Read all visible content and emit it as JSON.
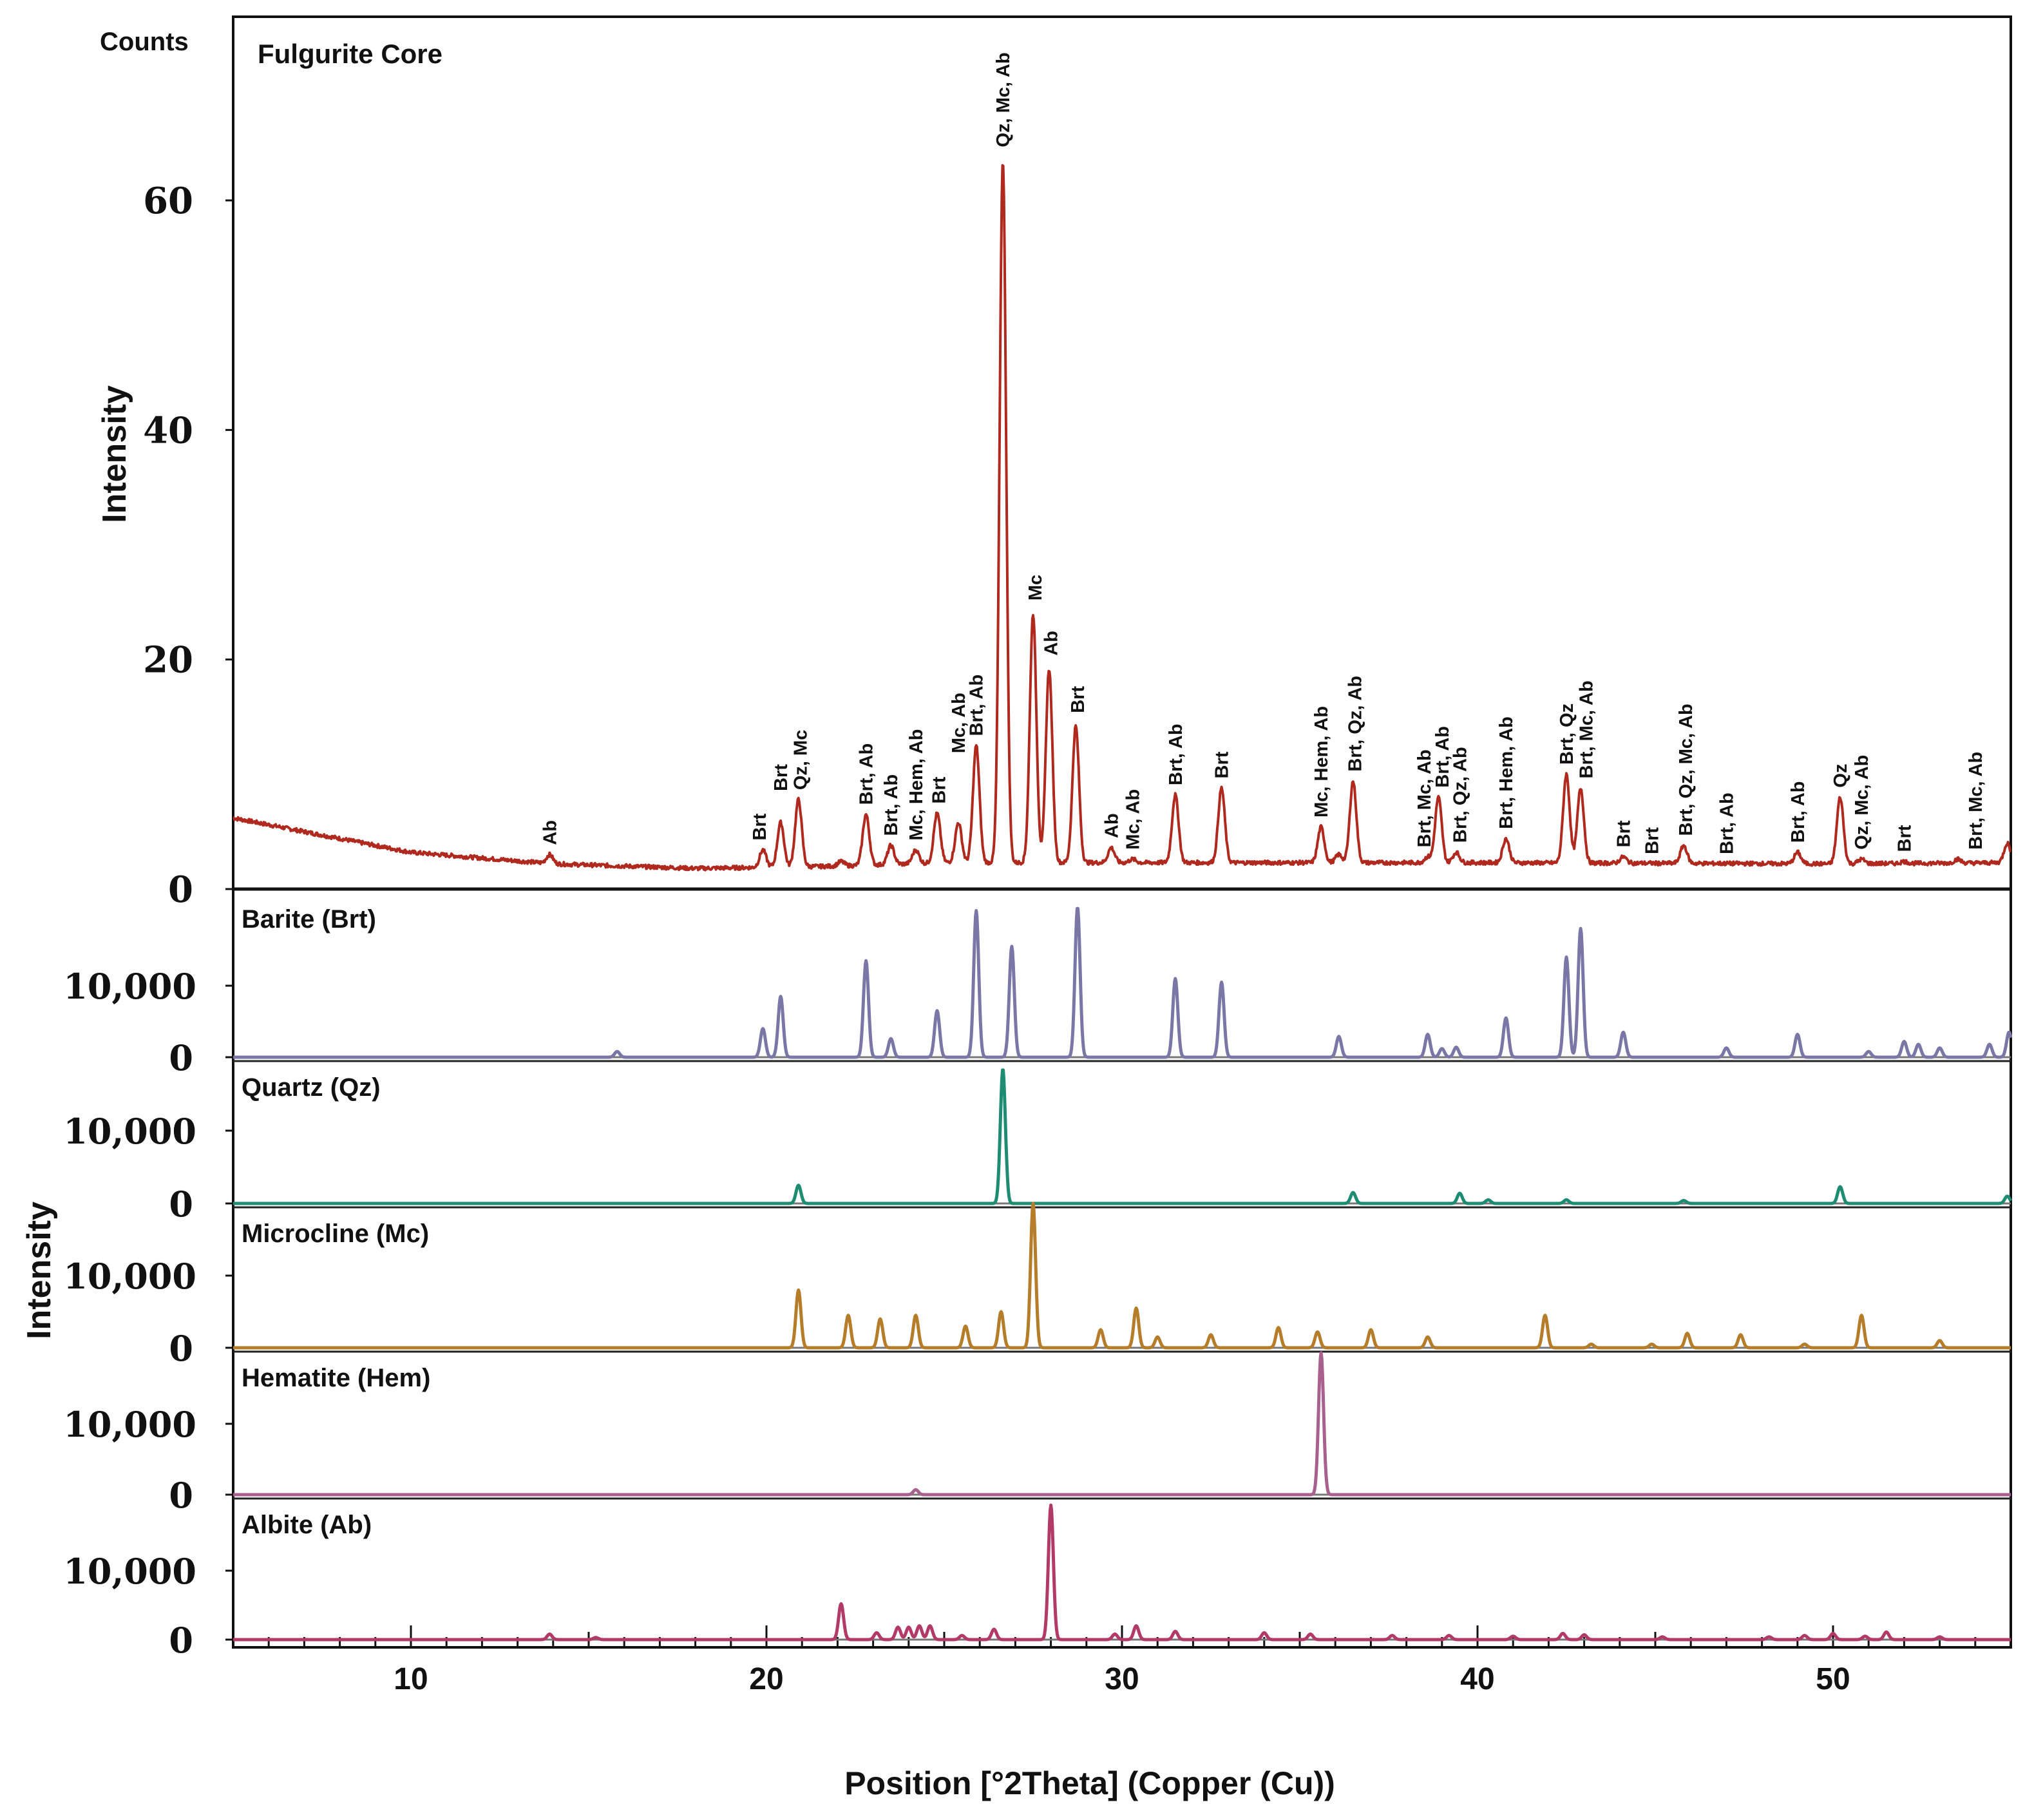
{
  "chart_data": [
    {
      "type": "line",
      "title": "Fulgurite Core",
      "ylabel": "Intensity",
      "yunit_label": "Counts",
      "xlabel": "Position [°2Theta] (Copper (Cu))",
      "xlim": [
        5,
        55
      ],
      "ylim": [
        0,
        76
      ],
      "yticks": [
        "0",
        "20",
        "40",
        "60"
      ],
      "xticks": [
        "10",
        "20",
        "30",
        "40",
        "50"
      ],
      "color": "#b0291f",
      "background_points": [
        [
          5,
          6.2
        ],
        [
          7,
          5
        ],
        [
          10,
          3.2
        ],
        [
          14,
          2.2
        ],
        [
          18,
          1.8
        ],
        [
          22,
          2.0
        ],
        [
          25,
          2.3
        ],
        [
          30,
          2.3
        ],
        [
          40,
          2.3
        ],
        [
          50,
          2.2
        ],
        [
          55,
          2.3
        ]
      ],
      "peaks": [
        {
          "x": 13.9,
          "y": 3.0
        },
        {
          "x": 19.9,
          "y": 3.4
        },
        {
          "x": 20.4,
          "y": 5.8
        },
        {
          "x": 20.9,
          "y": 7.8
        },
        {
          "x": 22.1,
          "y": 2.4
        },
        {
          "x": 22.8,
          "y": 6.5
        },
        {
          "x": 23.5,
          "y": 3.8
        },
        {
          "x": 24.2,
          "y": 3.4
        },
        {
          "x": 24.8,
          "y": 6.6
        },
        {
          "x": 25.4,
          "y": 5.8
        },
        {
          "x": 25.9,
          "y": 12.5
        },
        {
          "x": 26.65,
          "y": 63.5
        },
        {
          "x": 27.5,
          "y": 24
        },
        {
          "x": 27.95,
          "y": 19.2
        },
        {
          "x": 28.7,
          "y": 14.2
        },
        {
          "x": 29.7,
          "y": 3.6
        },
        {
          "x": 30.3,
          "y": 2.6
        },
        {
          "x": 31.5,
          "y": 8.2
        },
        {
          "x": 32.8,
          "y": 8.8
        },
        {
          "x": 35.6,
          "y": 5.4
        },
        {
          "x": 36.1,
          "y": 3.0
        },
        {
          "x": 36.5,
          "y": 9.4
        },
        {
          "x": 38.6,
          "y": 2.8
        },
        {
          "x": 38.9,
          "y": 8.0
        },
        {
          "x": 39.4,
          "y": 3.2
        },
        {
          "x": 40.8,
          "y": 4.4
        },
        {
          "x": 42.5,
          "y": 10.0
        },
        {
          "x": 42.9,
          "y": 8.8
        },
        {
          "x": 44.1,
          "y": 2.8
        },
        {
          "x": 44.9,
          "y": 2.2
        },
        {
          "x": 45.8,
          "y": 3.8
        },
        {
          "x": 47.0,
          "y": 2.2
        },
        {
          "x": 49.0,
          "y": 3.2
        },
        {
          "x": 50.2,
          "y": 8.0
        },
        {
          "x": 50.8,
          "y": 2.6
        },
        {
          "x": 52.0,
          "y": 2.4
        },
        {
          "x": 53.5,
          "y": 2.6
        },
        {
          "x": 54.9,
          "y": 4.0
        }
      ],
      "peak_labels": [
        {
          "x": 13.9,
          "y": 3.5,
          "text": "Ab"
        },
        {
          "x": 19.8,
          "y": 3.9,
          "text": "Brt"
        },
        {
          "x": 20.4,
          "y": 8.2,
          "text": "Brt"
        },
        {
          "x": 20.95,
          "y": 8.3,
          "text": "Qz, Mc"
        },
        {
          "x": 22.8,
          "y": 7.0,
          "text": "Brt, Ab"
        },
        {
          "x": 23.5,
          "y": 4.3,
          "text": "Brt, Ab"
        },
        {
          "x": 24.2,
          "y": 3.9,
          "text": "Mc, Hem, Ab"
        },
        {
          "x": 24.85,
          "y": 7.1,
          "text": "Brt"
        },
        {
          "x": 25.4,
          "y": 11.5,
          "text": "Mc, Ab"
        },
        {
          "x": 25.9,
          "y": 13.0,
          "text": "Brt, Ab"
        },
        {
          "x": 26.65,
          "y": 64.3,
          "text": "Qz, Mc, Ab"
        },
        {
          "x": 27.55,
          "y": 24.8,
          "text": "Mc"
        },
        {
          "x": 28.0,
          "y": 20.0,
          "text": "Ab"
        },
        {
          "x": 28.75,
          "y": 15.0,
          "text": "Brt"
        },
        {
          "x": 29.7,
          "y": 4.1,
          "text": "Ab"
        },
        {
          "x": 30.3,
          "y": 3.1,
          "text": "Mc, Ab"
        },
        {
          "x": 31.5,
          "y": 8.7,
          "text": "Brt, Ab"
        },
        {
          "x": 32.8,
          "y": 9.3,
          "text": "Brt"
        },
        {
          "x": 35.6,
          "y": 5.9,
          "text": "Mc, Hem, Ab"
        },
        {
          "x": 36.55,
          "y": 9.9,
          "text": "Brt, Qz, Ab"
        },
        {
          "x": 38.5,
          "y": 3.3,
          "text": "Brt, Mc, Ab"
        },
        {
          "x": 39.0,
          "y": 8.5,
          "text": "Brt, Ab"
        },
        {
          "x": 39.5,
          "y": 3.7,
          "text": "Brt, Qz, Ab"
        },
        {
          "x": 40.8,
          "y": 4.9,
          "text": "Brt, Hem, Ab"
        },
        {
          "x": 42.5,
          "y": 10.5,
          "text": "Brt, Qz"
        },
        {
          "x": 43.05,
          "y": 9.3,
          "text": "Brt, Mc, Ab"
        },
        {
          "x": 44.1,
          "y": 3.3,
          "text": "Brt"
        },
        {
          "x": 44.9,
          "y": 2.7,
          "text": "Brt"
        },
        {
          "x": 45.85,
          "y": 4.3,
          "text": "Brt, Qz, Mc, Ab"
        },
        {
          "x": 47.0,
          "y": 2.7,
          "text": "Brt, Ab"
        },
        {
          "x": 49.0,
          "y": 3.7,
          "text": "Brt, Ab"
        },
        {
          "x": 50.2,
          "y": 8.5,
          "text": "Qz"
        },
        {
          "x": 50.8,
          "y": 3.1,
          "text": "Qz, Mc, Ab"
        },
        {
          "x": 52.0,
          "y": 2.9,
          "text": "Brt"
        },
        {
          "x": 54.0,
          "y": 3.1,
          "text": "Brt, Mc, Ab"
        }
      ]
    },
    {
      "type": "line",
      "title": "Barite (Brt)",
      "color": "#7a76a5",
      "xlim": [
        5,
        55
      ],
      "ylim": [
        0,
        20000
      ],
      "yticks": [
        "10,000",
        "0"
      ],
      "baseline": 0,
      "peaks": [
        {
          "x": 15.8,
          "y": 800
        },
        {
          "x": 19.9,
          "y": 4000
        },
        {
          "x": 20.4,
          "y": 8500
        },
        {
          "x": 22.8,
          "y": 13500
        },
        {
          "x": 23.5,
          "y": 2600
        },
        {
          "x": 24.8,
          "y": 6500
        },
        {
          "x": 25.9,
          "y": 20500
        },
        {
          "x": 26.9,
          "y": 15500
        },
        {
          "x": 28.75,
          "y": 21000
        },
        {
          "x": 31.5,
          "y": 11000
        },
        {
          "x": 32.8,
          "y": 10500
        },
        {
          "x": 36.1,
          "y": 2900
        },
        {
          "x": 38.6,
          "y": 3200
        },
        {
          "x": 39.0,
          "y": 1200
        },
        {
          "x": 39.4,
          "y": 1400
        },
        {
          "x": 40.8,
          "y": 5500
        },
        {
          "x": 42.5,
          "y": 14000
        },
        {
          "x": 42.9,
          "y": 18000
        },
        {
          "x": 44.1,
          "y": 3500
        },
        {
          "x": 47.0,
          "y": 1300
        },
        {
          "x": 49.0,
          "y": 3200
        },
        {
          "x": 51.0,
          "y": 800
        },
        {
          "x": 52.0,
          "y": 2200
        },
        {
          "x": 52.4,
          "y": 1800
        },
        {
          "x": 53.0,
          "y": 1300
        },
        {
          "x": 54.4,
          "y": 1800
        },
        {
          "x": 54.95,
          "y": 3500
        }
      ]
    },
    {
      "type": "line",
      "title": "Quartz (Qz)",
      "color": "#1e8c72",
      "xlim": [
        5,
        55
      ],
      "ylim": [
        0,
        20000
      ],
      "yticks": [
        "10,000",
        "0"
      ],
      "baseline": 0,
      "peaks": [
        {
          "x": 20.9,
          "y": 2500
        },
        {
          "x": 26.65,
          "y": 18500
        },
        {
          "x": 36.5,
          "y": 1500
        },
        {
          "x": 39.5,
          "y": 1400
        },
        {
          "x": 40.3,
          "y": 500
        },
        {
          "x": 42.5,
          "y": 500
        },
        {
          "x": 45.8,
          "y": 400
        },
        {
          "x": 50.2,
          "y": 2300
        },
        {
          "x": 54.9,
          "y": 1000
        }
      ]
    },
    {
      "type": "line",
      "title": "Microcline (Mc)",
      "color": "#b57d2a",
      "xlim": [
        5,
        55
      ],
      "ylim": [
        0,
        20000
      ],
      "yticks": [
        "10,000",
        "0"
      ],
      "baseline": 0,
      "peaks": [
        {
          "x": 20.9,
          "y": 8000
        },
        {
          "x": 22.3,
          "y": 4500
        },
        {
          "x": 23.2,
          "y": 4000
        },
        {
          "x": 24.2,
          "y": 4500
        },
        {
          "x": 25.6,
          "y": 3000
        },
        {
          "x": 26.6,
          "y": 5000
        },
        {
          "x": 27.5,
          "y": 20000
        },
        {
          "x": 29.4,
          "y": 2500
        },
        {
          "x": 30.4,
          "y": 5500
        },
        {
          "x": 31.0,
          "y": 1500
        },
        {
          "x": 32.5,
          "y": 1800
        },
        {
          "x": 34.4,
          "y": 2800
        },
        {
          "x": 35.5,
          "y": 2200
        },
        {
          "x": 37.0,
          "y": 2500
        },
        {
          "x": 38.6,
          "y": 1500
        },
        {
          "x": 41.9,
          "y": 4500
        },
        {
          "x": 43.2,
          "y": 500
        },
        {
          "x": 44.9,
          "y": 500
        },
        {
          "x": 45.9,
          "y": 2000
        },
        {
          "x": 47.4,
          "y": 1800
        },
        {
          "x": 49.2,
          "y": 500
        },
        {
          "x": 50.8,
          "y": 4500
        },
        {
          "x": 53.0,
          "y": 1000
        }
      ]
    },
    {
      "type": "line",
      "title": "Hematite (Hem)",
      "color": "#a8608e",
      "xlim": [
        5,
        55
      ],
      "ylim": [
        0,
        20000
      ],
      "yticks": [
        "10,000",
        "0"
      ],
      "baseline": 0,
      "peaks": [
        {
          "x": 24.2,
          "y": 700
        },
        {
          "x": 35.6,
          "y": 20000
        }
      ]
    },
    {
      "type": "line",
      "title": "Albite (Ab)",
      "color": "#b23a66",
      "xlim": [
        5,
        55
      ],
      "ylim": [
        0,
        20000
      ],
      "yticks": [
        "10,000",
        "0"
      ],
      "baseline": 0,
      "peaks": [
        {
          "x": 13.9,
          "y": 800
        },
        {
          "x": 15.2,
          "y": 300
        },
        {
          "x": 22.1,
          "y": 5200
        },
        {
          "x": 23.1,
          "y": 1000
        },
        {
          "x": 23.7,
          "y": 1800
        },
        {
          "x": 24.0,
          "y": 1800
        },
        {
          "x": 24.3,
          "y": 2000
        },
        {
          "x": 24.6,
          "y": 2000
        },
        {
          "x": 25.5,
          "y": 600
        },
        {
          "x": 26.4,
          "y": 1500
        },
        {
          "x": 28.0,
          "y": 19500
        },
        {
          "x": 29.8,
          "y": 800
        },
        {
          "x": 30.4,
          "y": 2000
        },
        {
          "x": 31.5,
          "y": 1200
        },
        {
          "x": 34.0,
          "y": 1000
        },
        {
          "x": 35.3,
          "y": 800
        },
        {
          "x": 37.6,
          "y": 600
        },
        {
          "x": 39.2,
          "y": 600
        },
        {
          "x": 41.0,
          "y": 500
        },
        {
          "x": 42.4,
          "y": 900
        },
        {
          "x": 43.0,
          "y": 700
        },
        {
          "x": 45.2,
          "y": 400
        },
        {
          "x": 48.2,
          "y": 400
        },
        {
          "x": 49.2,
          "y": 600
        },
        {
          "x": 50.0,
          "y": 900
        },
        {
          "x": 50.9,
          "y": 500
        },
        {
          "x": 51.5,
          "y": 1100
        },
        {
          "x": 53.0,
          "y": 400
        }
      ]
    }
  ],
  "shared": {
    "xlabel": "Position [°2Theta] (Copper (Cu))",
    "ylabel_lower": "Intensity"
  }
}
